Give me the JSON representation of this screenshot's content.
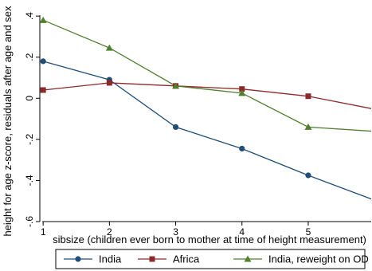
{
  "chart_data": {
    "type": "line",
    "title": "",
    "xlabel": "sibsize (children ever born to mother at time of height measurement)",
    "ylabel": "height for age z-score, residuals after age and sex",
    "x_ticks": [
      "1",
      "2",
      "3",
      "4",
      "5"
    ],
    "y_ticks": [
      "-.6",
      "-.4",
      "-.2",
      "0",
      ".2",
      ".4"
    ],
    "xlim": [
      0.95,
      5.95
    ],
    "ylim": [
      -0.6,
      0.42
    ],
    "grid": false,
    "legend_position": "bottom",
    "series": [
      {
        "name": "India",
        "color": "#1f4e79",
        "marker": "circle",
        "points": [
          {
            "x": 1,
            "y": 0.18,
            "marked": true
          },
          {
            "x": 2,
            "y": 0.09,
            "marked": true
          },
          {
            "x": 3,
            "y": -0.14,
            "marked": true
          },
          {
            "x": 4,
            "y": -0.245,
            "marked": true
          },
          {
            "x": 5,
            "y": -0.375,
            "marked": true
          },
          {
            "x": 5.95,
            "y": -0.49,
            "marked": false
          }
        ]
      },
      {
        "name": "Africa",
        "color": "#8b2a2a",
        "marker": "square",
        "points": [
          {
            "x": 1,
            "y": 0.04,
            "marked": true
          },
          {
            "x": 2,
            "y": 0.075,
            "marked": true
          },
          {
            "x": 3,
            "y": 0.06,
            "marked": true
          },
          {
            "x": 4,
            "y": 0.045,
            "marked": true
          },
          {
            "x": 5,
            "y": 0.01,
            "marked": true
          },
          {
            "x": 5.95,
            "y": -0.05,
            "marked": false
          }
        ]
      },
      {
        "name": "India, reweight on OD",
        "color": "#4f7f2f",
        "marker": "triangle",
        "points": [
          {
            "x": 1,
            "y": 0.38,
            "marked": true
          },
          {
            "x": 2,
            "y": 0.245,
            "marked": true
          },
          {
            "x": 3,
            "y": 0.06,
            "marked": true
          },
          {
            "x": 4,
            "y": 0.025,
            "marked": true
          },
          {
            "x": 5,
            "y": -0.14,
            "marked": true
          },
          {
            "x": 5.95,
            "y": -0.16,
            "marked": false
          }
        ]
      }
    ]
  }
}
